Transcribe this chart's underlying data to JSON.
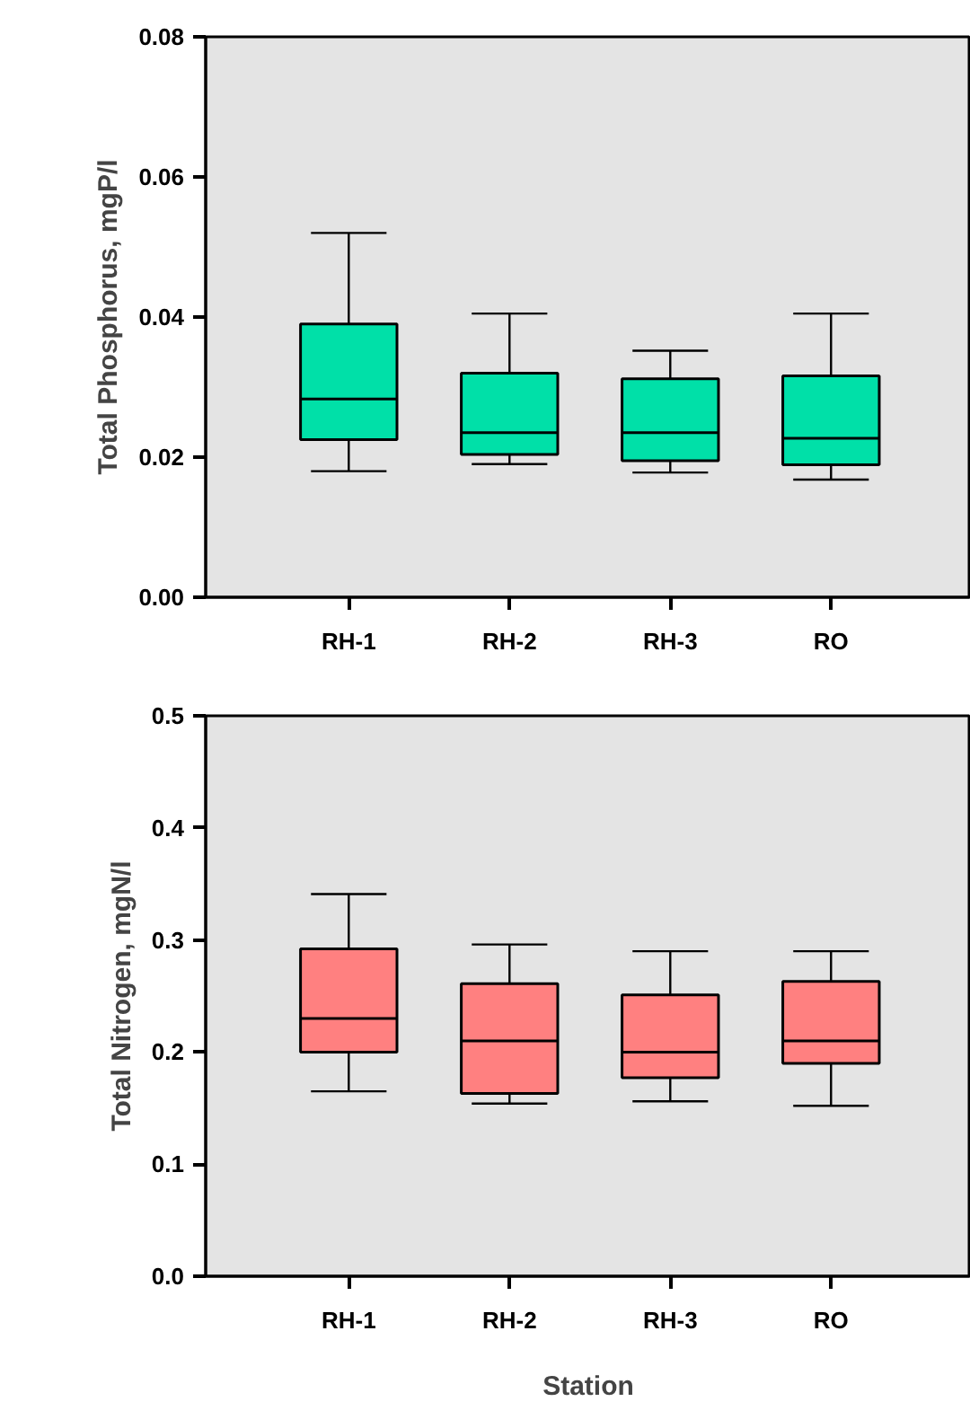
{
  "chart_data": [
    {
      "type": "box",
      "ylabel": "Total Phosphorus, mgP/l",
      "categories": [
        "RH-1",
        "RH-2",
        "RH-3",
        "RO"
      ],
      "color": "#00e0a8",
      "grid": false,
      "boxes": [
        {
          "low": 0.018,
          "q1": 0.0225,
          "median": 0.0283,
          "q3": 0.039,
          "high": 0.052
        },
        {
          "low": 0.019,
          "q1": 0.0204,
          "median": 0.0235,
          "q3": 0.032,
          "high": 0.0405
        },
        {
          "low": 0.0178,
          "q1": 0.0195,
          "median": 0.0235,
          "q3": 0.0312,
          "high": 0.0352
        },
        {
          "low": 0.0168,
          "q1": 0.0189,
          "median": 0.0227,
          "q3": 0.0316,
          "high": 0.0405
        }
      ],
      "ylim": [
        0,
        0.08
      ],
      "yticks": [
        {
          "value": 0,
          "label": "0.00"
        },
        {
          "value": 0.02,
          "label": "0.02"
        },
        {
          "value": 0.04,
          "label": "0.04"
        },
        {
          "value": 0.06,
          "label": "0.06"
        },
        {
          "value": 0.08,
          "label": "0.08"
        }
      ]
    },
    {
      "type": "box",
      "ylabel": "Total Nitrogen, mgN/l",
      "xlabel": "Station",
      "categories": [
        "RH-1",
        "RH-2",
        "RH-3",
        "RO"
      ],
      "color": "#ff8080",
      "grid": false,
      "boxes": [
        {
          "low": 0.165,
          "q1": 0.2,
          "median": 0.23,
          "q3": 0.292,
          "high": 0.341
        },
        {
          "low": 0.154,
          "q1": 0.163,
          "median": 0.21,
          "q3": 0.261,
          "high": 0.296
        },
        {
          "low": 0.156,
          "q1": 0.177,
          "median": 0.2,
          "q3": 0.251,
          "high": 0.29
        },
        {
          "low": 0.152,
          "q1": 0.19,
          "median": 0.21,
          "q3": 0.263,
          "high": 0.29
        }
      ],
      "ylim": [
        0,
        0.5
      ],
      "yticks": [
        {
          "value": 0,
          "label": "0.0"
        },
        {
          "value": 0.1,
          "label": "0.1"
        },
        {
          "value": 0.2,
          "label": "0.2"
        },
        {
          "value": 0.3,
          "label": "0.3"
        },
        {
          "value": 0.4,
          "label": "0.4"
        },
        {
          "value": 0.5,
          "label": "0.5"
        }
      ]
    }
  ]
}
